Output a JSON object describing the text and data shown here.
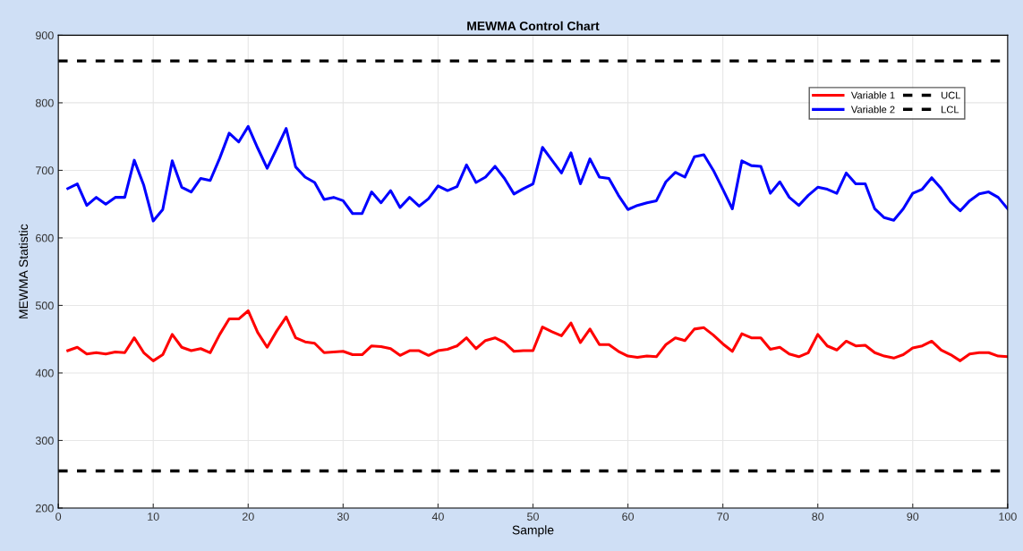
{
  "chart_data": {
    "type": "line",
    "title": "MEWMA Control Chart",
    "xlabel": "Sample",
    "ylabel": "MEWMA Statistic",
    "x": [
      1,
      2,
      3,
      4,
      5,
      6,
      7,
      8,
      9,
      10,
      11,
      12,
      13,
      14,
      15,
      16,
      17,
      18,
      19,
      20,
      21,
      22,
      23,
      24,
      25,
      26,
      27,
      28,
      29,
      30,
      31,
      32,
      33,
      34,
      35,
      36,
      37,
      38,
      39,
      40,
      41,
      42,
      43,
      44,
      45,
      46,
      47,
      48,
      49,
      50,
      51,
      52,
      53,
      54,
      55,
      56,
      57,
      58,
      59,
      60,
      61,
      62,
      63,
      64,
      65,
      66,
      67,
      68,
      69,
      70,
      71,
      72,
      73,
      74,
      75,
      76,
      77,
      78,
      79,
      80,
      81,
      82,
      83,
      84,
      85,
      86,
      87,
      88,
      89,
      90,
      91,
      92,
      93,
      94,
      95,
      96,
      97,
      98,
      99,
      100
    ],
    "series": [
      {
        "name": "Variable 1",
        "color": "#ff0000",
        "values": [
          433,
          438,
          428,
          430,
          428,
          431,
          430,
          452,
          430,
          418,
          427,
          457,
          438,
          433,
          436,
          430,
          457,
          480,
          480,
          492,
          460,
          438,
          462,
          483,
          452,
          446,
          444,
          430,
          431,
          432,
          427,
          427,
          440,
          439,
          436,
          426,
          433,
          433,
          426,
          433,
          435,
          440,
          452,
          436,
          448,
          452,
          445,
          432,
          433,
          433,
          468,
          461,
          455,
          474,
          445,
          465,
          442,
          442,
          432,
          425,
          423,
          425,
          424,
          442,
          452,
          448,
          465,
          467,
          456,
          443,
          432,
          458,
          452,
          452,
          435,
          438,
          428,
          424,
          430,
          457,
          440,
          434,
          447,
          440,
          441,
          430,
          425,
          422,
          427,
          437,
          440,
          447,
          434,
          427,
          418,
          428,
          430,
          430,
          425,
          424
        ]
      },
      {
        "name": "Variable 2",
        "color": "#0000ff",
        "values": [
          673,
          680,
          648,
          660,
          650,
          660,
          660,
          715,
          678,
          625,
          642,
          714,
          675,
          668,
          688,
          685,
          718,
          755,
          742,
          765,
          733,
          703,
          732,
          762,
          705,
          690,
          682,
          657,
          660,
          655,
          636,
          636,
          668,
          652,
          670,
          645,
          660,
          647,
          658,
          677,
          670,
          676,
          708,
          682,
          690,
          706,
          688,
          665,
          673,
          680,
          734,
          715,
          696,
          726,
          680,
          717,
          690,
          688,
          663,
          642,
          648,
          652,
          655,
          683,
          697,
          690,
          720,
          723,
          700,
          672,
          643,
          714,
          707,
          706,
          666,
          683,
          660,
          648,
          663,
          675,
          672,
          666,
          696,
          680,
          680,
          643,
          630,
          626,
          643,
          666,
          672,
          689,
          673,
          653,
          640,
          655,
          665,
          668,
          660,
          643
        ]
      }
    ],
    "ref_lines": [
      {
        "axis": "y",
        "value": 862,
        "label": "UCL",
        "color": "#000000",
        "line_style": "dashed"
      },
      {
        "axis": "y",
        "value": 255,
        "label": "LCL",
        "color": "#000000",
        "line_style": "dashed"
      }
    ],
    "xlim": [
      0,
      100
    ],
    "xticks": [
      0,
      10,
      20,
      30,
      40,
      50,
      60,
      70,
      80,
      90,
      100
    ],
    "ylim": [
      200,
      900
    ],
    "yticks": [
      200,
      300,
      400,
      500,
      600,
      700,
      800,
      900
    ],
    "grid": true,
    "legend": "top right",
    "line_style": "solid",
    "marker": "none"
  }
}
